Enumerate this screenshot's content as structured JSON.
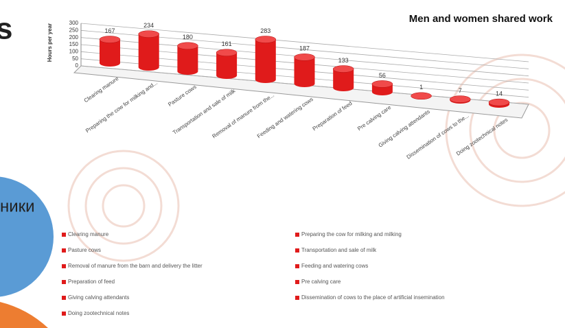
{
  "slide": {
    "heading_fragment": "s",
    "text_fragment": "ники"
  },
  "chart_data": {
    "type": "bar",
    "title": "Men and women shared work",
    "y_label": "Hours per year",
    "categories": [
      "Clearing manure",
      "Preparing the cow for milking and...",
      "Pasture cows",
      "Transportation and sale of milk",
      "Removal of manure from the...",
      "Feeding and watering cows",
      "Preparation of feed",
      "Pre calving care",
      "Giving calving attendants",
      "Dissemination of cows to the...",
      "Doing zootechnical notes"
    ],
    "legend": [
      "Clearing manure",
      "Preparing the cow for milking and milking",
      "Pasture cows",
      "Transportation and sale of milk",
      "Removal of manure from the barn and delivery the litter",
      "Feeding and watering cows",
      "Preparation of feed",
      "Pre calving care",
      "Giving calving attendants",
      "Dissemination of cows to the place of artificial insemination",
      "Doing zootechnical notes"
    ],
    "values": [
      167,
      234,
      180,
      161,
      283,
      187,
      133,
      56,
      1,
      7,
      14
    ],
    "color": "#e01b1b",
    "ylim": [
      0,
      300
    ],
    "yticks": [
      0,
      50,
      100,
      150,
      200,
      250,
      300
    ],
    "grid": true
  }
}
